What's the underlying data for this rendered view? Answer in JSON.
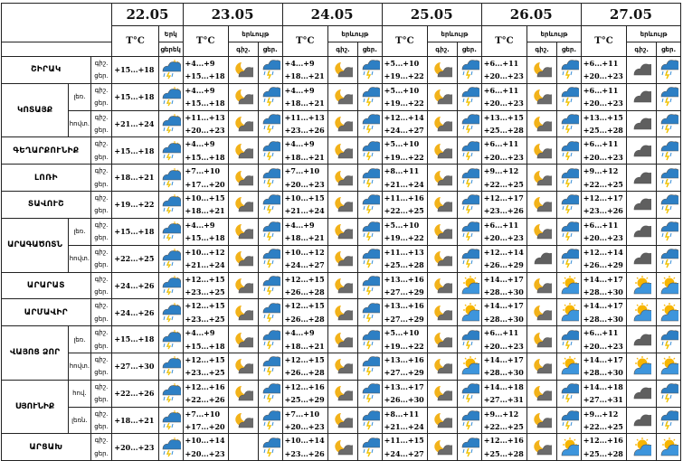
{
  "days": [
    {
      "date": "22.05",
      "tc": "T°C",
      "wx_head": "Երկ",
      "sub": [
        "ցերեկ",
        ""
      ]
    },
    {
      "date": "23.05",
      "tc": "T°C",
      "wx_head": "երևույթ",
      "sub": [
        "գիշ.",
        "ցեր."
      ]
    },
    {
      "date": "24.05",
      "tc": "T°C",
      "wx_head": "երևույթ",
      "sub": [
        "գիշ.",
        "ցեր."
      ]
    },
    {
      "date": "25.05",
      "tc": "T°C",
      "wx_head": "երևույթ",
      "sub": [
        "գիշ.",
        "ցեր."
      ]
    },
    {
      "date": "26.05",
      "tc": "T°C",
      "wx_head": "երևույթ",
      "sub": [
        "գիշ.",
        "ցեր."
      ]
    },
    {
      "date": "27.05",
      "tc": "T°C",
      "wx_head": "երևույթ",
      "sub": [
        "գիշ.",
        "ցեր."
      ]
    }
  ],
  "rows": [
    {
      "region": "ՇԻՐԱԿ",
      "zone": "",
      "night": "գիշ.",
      "day": "ցեր.",
      "cells": [
        {
          "t": [
            "",
            "+15...+18"
          ],
          "i": [
            "",
            "sun-storm"
          ]
        },
        {
          "t": [
            "+4...+9",
            "+15...+18"
          ],
          "i": [
            "moon-cloud",
            "storm"
          ]
        },
        {
          "t": [
            "+4...+9",
            "+18...+21"
          ],
          "i": [
            "moon-cloud",
            "storm"
          ]
        },
        {
          "t": [
            "+5...+10",
            "+19...+22"
          ],
          "i": [
            "moon-cloud",
            "storm"
          ]
        },
        {
          "t": [
            "+6...+11",
            "+20...+23"
          ],
          "i": [
            "moon-cloud",
            "storm"
          ]
        },
        {
          "t": [
            "+6...+11",
            "+20...+23"
          ],
          "i": [
            "cloud",
            "storm"
          ]
        }
      ]
    },
    {
      "region": "ԿՈՏԱՅՔ",
      "zone": "լեռ.",
      "night": "գիշ.",
      "day": "ցեր.",
      "cells": [
        {
          "t": [
            "",
            "+15...+18"
          ],
          "i": [
            "",
            "sun-storm"
          ]
        },
        {
          "t": [
            "+4...+9",
            "+15...+18"
          ],
          "i": [
            "moon-cloud",
            "storm"
          ]
        },
        {
          "t": [
            "+4...+9",
            "+18...+21"
          ],
          "i": [
            "moon-cloud",
            "storm"
          ]
        },
        {
          "t": [
            "+5...+10",
            "+19...+22"
          ],
          "i": [
            "moon-cloud",
            "storm"
          ]
        },
        {
          "t": [
            "+6...+11",
            "+20...+23"
          ],
          "i": [
            "moon-cloud",
            "storm"
          ]
        },
        {
          "t": [
            "+6...+11",
            "+20...+23"
          ],
          "i": [
            "cloud",
            "storm"
          ]
        }
      ]
    },
    {
      "region": "",
      "zone": "հովտ.",
      "night": "գիշ.",
      "day": "ցեր.",
      "cells": [
        {
          "t": [
            "",
            "+21...+24"
          ],
          "i": [
            "",
            "sun-storm"
          ]
        },
        {
          "t": [
            "+11...+13",
            "+20...+23"
          ],
          "i": [
            "moon-cloud",
            "storm"
          ]
        },
        {
          "t": [
            "+11...+13",
            "+23...+26"
          ],
          "i": [
            "moon-cloud",
            "storm"
          ]
        },
        {
          "t": [
            "+12...+14",
            "+24...+27"
          ],
          "i": [
            "moon-cloud",
            "storm"
          ]
        },
        {
          "t": [
            "+13...+15",
            "+25...+28"
          ],
          "i": [
            "moon-cloud",
            "storm"
          ]
        },
        {
          "t": [
            "+13...+15",
            "+25...+28"
          ],
          "i": [
            "cloud",
            "storm"
          ]
        }
      ]
    },
    {
      "region": "ԳԵՂԱՐՔՈՒՆԻՔ",
      "zone": "",
      "night": "գիշ.",
      "day": "ցեր.",
      "cells": [
        {
          "t": [
            "",
            "+15...+18"
          ],
          "i": [
            "",
            "sun-storm"
          ]
        },
        {
          "t": [
            "+4...+9",
            "+15...+18"
          ],
          "i": [
            "moon-cloud",
            "storm"
          ]
        },
        {
          "t": [
            "+4...+9",
            "+18...+21"
          ],
          "i": [
            "moon-cloud",
            "storm"
          ]
        },
        {
          "t": [
            "+5...+10",
            "+19...+22"
          ],
          "i": [
            "moon-cloud",
            "storm"
          ]
        },
        {
          "t": [
            "+6...+11",
            "+20...+23"
          ],
          "i": [
            "moon-cloud",
            "storm"
          ]
        },
        {
          "t": [
            "+6...+11",
            "+20...+23"
          ],
          "i": [
            "cloud",
            "storm"
          ]
        }
      ]
    },
    {
      "region": "ԼՈՌԻ",
      "zone": "",
      "night": "գիշ.",
      "day": "ցեր.",
      "cells": [
        {
          "t": [
            "",
            "+18...+21"
          ],
          "i": [
            "",
            "sun-storm"
          ]
        },
        {
          "t": [
            "+7...+10",
            "+17...+20"
          ],
          "i": [
            "moon-cloud",
            "storm"
          ]
        },
        {
          "t": [
            "+7...+10",
            "+20...+23"
          ],
          "i": [
            "moon-cloud",
            "storm"
          ]
        },
        {
          "t": [
            "+8...+11",
            "+21...+24"
          ],
          "i": [
            "moon-cloud",
            "storm"
          ]
        },
        {
          "t": [
            "+9...+12",
            "+22...+25"
          ],
          "i": [
            "moon-cloud",
            "storm"
          ]
        },
        {
          "t": [
            "+9...+12",
            "+22...+25"
          ],
          "i": [
            "cloud",
            "storm"
          ]
        }
      ]
    },
    {
      "region": "ՏԱՎՈՒՇ",
      "zone": "",
      "night": "գիշ.",
      "day": "ցեր.",
      "cells": [
        {
          "t": [
            "",
            "+19...+22"
          ],
          "i": [
            "",
            "sun-storm"
          ]
        },
        {
          "t": [
            "+10...+15",
            "+18...+21"
          ],
          "i": [
            "moon-cloud",
            "storm"
          ]
        },
        {
          "t": [
            "+10...+15",
            "+21...+24"
          ],
          "i": [
            "moon-cloud",
            "storm"
          ]
        },
        {
          "t": [
            "+11...+16",
            "+22...+25"
          ],
          "i": [
            "moon-cloud",
            "storm"
          ]
        },
        {
          "t": [
            "+12...+17",
            "+23...+26"
          ],
          "i": [
            "moon-cloud",
            "storm"
          ]
        },
        {
          "t": [
            "+12...+17",
            "+23...+26"
          ],
          "i": [
            "cloud",
            "storm"
          ]
        }
      ]
    },
    {
      "region": "ԱՐԱԳԱԾՈՏՆ",
      "zone": "լեռ.",
      "night": "գիշ.",
      "day": "ցեր.",
      "cells": [
        {
          "t": [
            "",
            "+15...+18"
          ],
          "i": [
            "",
            "sun-storm"
          ]
        },
        {
          "t": [
            "+4...+9",
            "+15...+18"
          ],
          "i": [
            "moon-cloud",
            "storm"
          ]
        },
        {
          "t": [
            "+4...+9",
            "+18...+21"
          ],
          "i": [
            "moon-cloud",
            "storm"
          ]
        },
        {
          "t": [
            "+5...+10",
            "+19...+22"
          ],
          "i": [
            "moon-cloud",
            "storm"
          ]
        },
        {
          "t": [
            "+6...+11",
            "+20...+23"
          ],
          "i": [
            "moon-cloud",
            "storm"
          ]
        },
        {
          "t": [
            "+6...+11",
            "+20...+23"
          ],
          "i": [
            "cloud",
            "storm"
          ]
        }
      ]
    },
    {
      "region": "",
      "zone": "հովտ.",
      "night": "գիշ.",
      "day": "ցեր.",
      "cells": [
        {
          "t": [
            "",
            "+22...+25"
          ],
          "i": [
            "",
            "sun-storm"
          ]
        },
        {
          "t": [
            "+10...+12",
            "+21...+24"
          ],
          "i": [
            "moon-cloud",
            "storm"
          ]
        },
        {
          "t": [
            "+10...+12",
            "+24...+27"
          ],
          "i": [
            "moon-cloud",
            "storm"
          ]
        },
        {
          "t": [
            "+11...+13",
            "+25...+28"
          ],
          "i": [
            "moon-cloud",
            "storm"
          ]
        },
        {
          "t": [
            "+12...+14",
            "+26...+29"
          ],
          "i": [
            "cloud",
            "storm"
          ]
        },
        {
          "t": [
            "+12...+14",
            "+26...+29"
          ],
          "i": [
            "cloud",
            "storm"
          ]
        }
      ]
    },
    {
      "region": "ԱՐԱՐԱՏ",
      "zone": "",
      "night": "գիշ.",
      "day": "ցեր.",
      "cells": [
        {
          "t": [
            "",
            "+24...+26"
          ],
          "i": [
            "",
            "sun-storm"
          ]
        },
        {
          "t": [
            "+12...+15",
            "+23...+25"
          ],
          "i": [
            "moon-cloud",
            "storm"
          ]
        },
        {
          "t": [
            "+12...+15",
            "+26...+28"
          ],
          "i": [
            "moon-cloud",
            "storm"
          ]
        },
        {
          "t": [
            "+13...+16",
            "+27...+29"
          ],
          "i": [
            "moon-cloud",
            "sun-cloud"
          ]
        },
        {
          "t": [
            "+14...+17",
            "+28...+30"
          ],
          "i": [
            "moon-cloud",
            "sun-cloud"
          ]
        },
        {
          "t": [
            "+14...+17",
            "+28...+30"
          ],
          "i": [
            "sun-cloud",
            "sun-cloud"
          ]
        }
      ]
    },
    {
      "region": "ԱՐՄԱՎԻՐ",
      "zone": "",
      "night": "գիշ.",
      "day": "ցեր.",
      "cells": [
        {
          "t": [
            "",
            "+24...+26"
          ],
          "i": [
            "",
            "sun-storm"
          ]
        },
        {
          "t": [
            "+12...+15",
            "+23...+25"
          ],
          "i": [
            "moon-cloud",
            "storm"
          ]
        },
        {
          "t": [
            "+12...+15",
            "+26...+28"
          ],
          "i": [
            "moon-cloud",
            "storm"
          ]
        },
        {
          "t": [
            "+13...+16",
            "+27...+29"
          ],
          "i": [
            "moon-cloud",
            "sun-cloud"
          ]
        },
        {
          "t": [
            "+14...+17",
            "+28...+30"
          ],
          "i": [
            "moon-cloud",
            "sun-cloud"
          ]
        },
        {
          "t": [
            "+14...+17",
            "+28...+30"
          ],
          "i": [
            "sun-cloud",
            "sun-cloud"
          ]
        }
      ]
    },
    {
      "region": "ՎԱՅՈՑ ՁՈՐ",
      "zone": "լեռ.",
      "night": "գիշ.",
      "day": "ցեր.",
      "cells": [
        {
          "t": [
            "",
            "+15...+18"
          ],
          "i": [
            "",
            "sun-storm"
          ]
        },
        {
          "t": [
            "+4...+9",
            "+15...+18"
          ],
          "i": [
            "moon-cloud",
            "storm"
          ]
        },
        {
          "t": [
            "+4...+9",
            "+18...+21"
          ],
          "i": [
            "moon-cloud",
            "storm"
          ]
        },
        {
          "t": [
            "+5...+10",
            "+19...+22"
          ],
          "i": [
            "moon-cloud",
            "storm"
          ]
        },
        {
          "t": [
            "+6...+11",
            "+20...+23"
          ],
          "i": [
            "moon-cloud",
            "storm"
          ]
        },
        {
          "t": [
            "+6...+11",
            "+20...+23"
          ],
          "i": [
            "cloud",
            "storm"
          ]
        }
      ]
    },
    {
      "region": "",
      "zone": "հովտ.",
      "night": "գիշ.",
      "day": "ցեր.",
      "cells": [
        {
          "t": [
            "",
            "+27...+30"
          ],
          "i": [
            "",
            "sun-storm"
          ]
        },
        {
          "t": [
            "+12...+15",
            "+23...+25"
          ],
          "i": [
            "moon-cloud",
            "storm"
          ]
        },
        {
          "t": [
            "+12...+15",
            "+26...+28"
          ],
          "i": [
            "moon-cloud",
            "storm"
          ]
        },
        {
          "t": [
            "+13...+16",
            "+27...+29"
          ],
          "i": [
            "moon-cloud",
            "sun-cloud"
          ]
        },
        {
          "t": [
            "+14...+17",
            "+28...+30"
          ],
          "i": [
            "moon-cloud",
            "sun-cloud"
          ]
        },
        {
          "t": [
            "+14...+17",
            "+28...+30"
          ],
          "i": [
            "sun-cloud",
            "sun-cloud"
          ]
        }
      ]
    },
    {
      "region": "ՍՅՈՒՆԻՔ",
      "zone": "հով.",
      "night": "գիշ.",
      "day": "ցեր.",
      "cells": [
        {
          "t": [
            "",
            "+22...+26"
          ],
          "i": [
            "",
            "sun-storm"
          ]
        },
        {
          "t": [
            "+12...+16",
            "+22...+26"
          ],
          "i": [
            "moon-cloud",
            "storm"
          ]
        },
        {
          "t": [
            "+12...+16",
            "+25...+29"
          ],
          "i": [
            "moon-cloud",
            "storm"
          ]
        },
        {
          "t": [
            "+13...+17",
            "+26...+30"
          ],
          "i": [
            "moon-cloud",
            "storm"
          ]
        },
        {
          "t": [
            "+14...+18",
            "+27...+31"
          ],
          "i": [
            "moon-cloud",
            "storm"
          ]
        },
        {
          "t": [
            "+14...+18",
            "+27...+31"
          ],
          "i": [
            "cloud",
            "storm"
          ]
        }
      ]
    },
    {
      "region": "",
      "zone": "լեռն.",
      "night": "գիշ.",
      "day": "ցեր.",
      "cells": [
        {
          "t": [
            "",
            "+18...+21"
          ],
          "i": [
            "",
            "sun-storm"
          ]
        },
        {
          "t": [
            "+7...+10",
            "+17...+20"
          ],
          "i": [
            "moon-cloud",
            "storm"
          ]
        },
        {
          "t": [
            "+7...+10",
            "+20...+23"
          ],
          "i": [
            "moon-cloud",
            "storm"
          ]
        },
        {
          "t": [
            "+8...+11",
            "+21...+24"
          ],
          "i": [
            "moon-cloud",
            "storm"
          ]
        },
        {
          "t": [
            "+9...+12",
            "+22...+25"
          ],
          "i": [
            "moon-cloud",
            "storm"
          ]
        },
        {
          "t": [
            "+9...+12",
            "+22...+25"
          ],
          "i": [
            "cloud",
            "storm"
          ]
        }
      ]
    },
    {
      "region": "ԱՐՑԱԽ",
      "zone": "",
      "night": "գիշ.",
      "day": "ցեր.",
      "cells": [
        {
          "t": [
            "",
            "+20...+23"
          ],
          "i": [
            "",
            "sun-storm"
          ]
        },
        {
          "t": [
            "+10...+14",
            "+20...+23"
          ],
          "i": [
            "",
            "storm"
          ]
        },
        {
          "t": [
            "+10...+14",
            "+23...+26"
          ],
          "i": [
            "moon-cloud",
            "storm"
          ]
        },
        {
          "t": [
            "+11...+15",
            "+24...+27"
          ],
          "i": [
            "moon-cloud",
            "storm"
          ]
        },
        {
          "t": [
            "+12...+16",
            "+25...+28"
          ],
          "i": [
            "moon-cloud",
            "sun-cloud"
          ]
        },
        {
          "t": [
            "+12...+16",
            "+25...+28"
          ],
          "i": [
            "sun-cloud",
            "sun-cloud"
          ]
        }
      ]
    }
  ]
}
